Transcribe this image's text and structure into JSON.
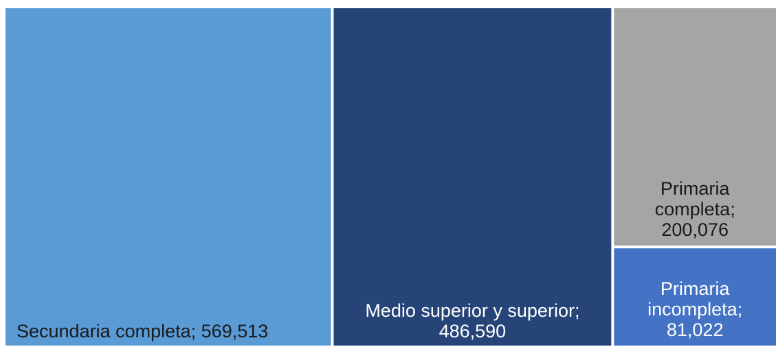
{
  "chart_data": {
    "type": "treemap",
    "title": "",
    "items": [
      {
        "label": "Secundaria completa; 569,513",
        "category": "Secundaria completa",
        "value": 569513,
        "color": "#5b9bd5",
        "text_color": "#1a1a1a"
      },
      {
        "label": "Medio superior y superior; 486,590",
        "category": "Medio superior y superior",
        "value": 486590,
        "color": "#264478",
        "text_color": "#ffffff"
      },
      {
        "label": "Primaria completa; 200,076",
        "category": "Primaria completa",
        "value": 200076,
        "color": "#a5a5a5",
        "text_color": "#1a1a1a"
      },
      {
        "label": "Primaria incompleta; 81,022",
        "category": "Primaria incompleta",
        "value": 81022,
        "color": "#4472c4",
        "text_color": "#ffffff"
      }
    ]
  }
}
